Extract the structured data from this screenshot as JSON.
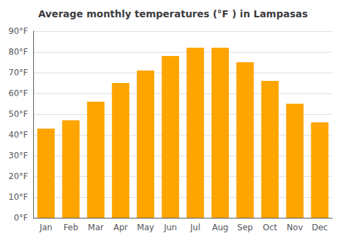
{
  "chart_data": {
    "type": "bar",
    "title": "Average monthly temperatures (°F ) in Lampasas",
    "categories": [
      "Jan",
      "Feb",
      "Mar",
      "Apr",
      "May",
      "Jun",
      "Jul",
      "Aug",
      "Sep",
      "Oct",
      "Nov",
      "Dec"
    ],
    "values": [
      43,
      47,
      56,
      65,
      71,
      78,
      82,
      82,
      75,
      66,
      55,
      46
    ],
    "color": "#FFA500",
    "ylim": [
      0,
      90
    ],
    "yticks": [
      {
        "value": 0,
        "label": "0°F"
      },
      {
        "value": 10,
        "label": "10°F"
      },
      {
        "value": 20,
        "label": "20°F"
      },
      {
        "value": 30,
        "label": "30°F"
      },
      {
        "value": 40,
        "label": "40°F"
      },
      {
        "value": 50,
        "label": "50°F"
      },
      {
        "value": 60,
        "label": "60°F"
      },
      {
        "value": 70,
        "label": "70°F"
      },
      {
        "value": 80,
        "label": "80°F"
      },
      {
        "value": 90,
        "label": "90°F"
      }
    ],
    "grid": true
  }
}
